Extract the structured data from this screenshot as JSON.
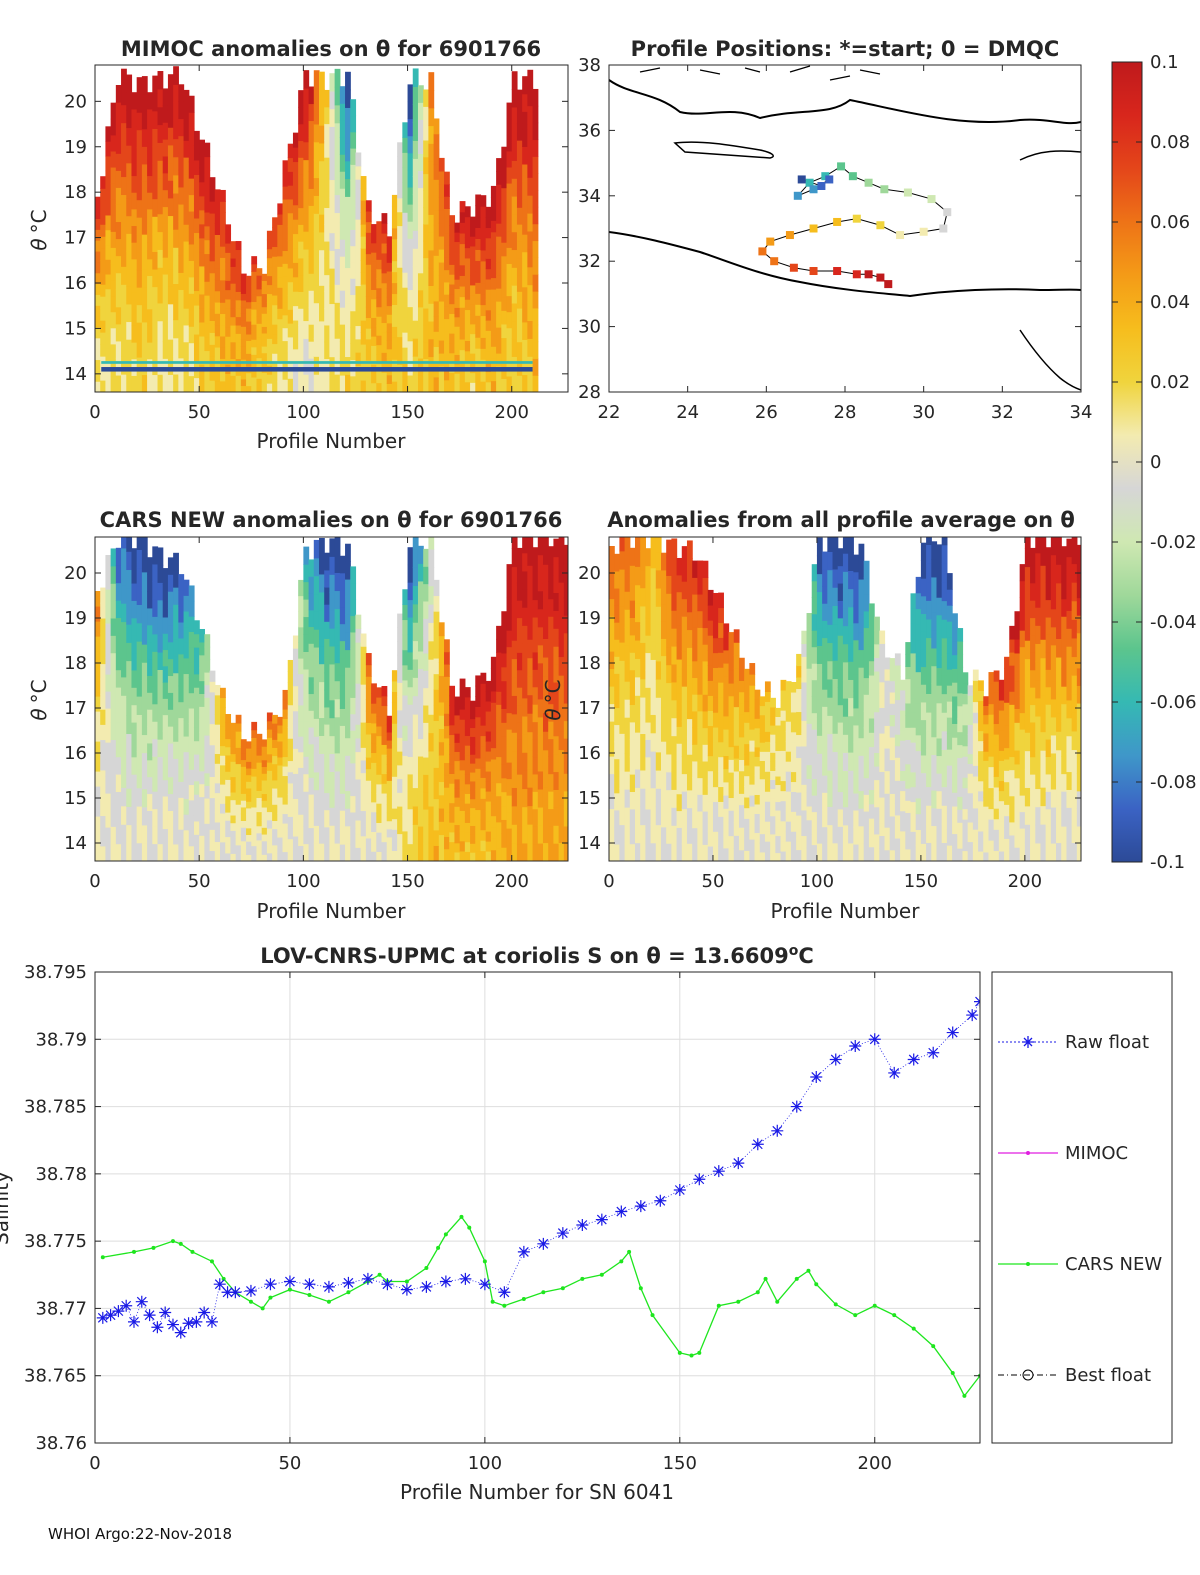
{
  "footer": "WHOI Argo:22-Nov-2018",
  "colorbar": {
    "ticks": [
      "0.1",
      "0.08",
      "0.06",
      "0.04",
      "0.02",
      "0",
      "-0.02",
      "-0.04",
      "-0.06",
      "-0.08",
      "-0.1"
    ],
    "range": [
      -0.1,
      0.1
    ],
    "colors": [
      "#2c4a97",
      "#3b63c4",
      "#3f97c9",
      "#35b9b3",
      "#5cc58d",
      "#9fd89a",
      "#cfe8b2",
      "#d6d6d6",
      "#f3ebb0",
      "#f0d43d",
      "#f6bd1d",
      "#f49b17",
      "#ee7317",
      "#e4461a",
      "#d8261c",
      "#bf1a1c"
    ]
  },
  "panel_a": {
    "title": "MIMOC anomalies on θ  for 6901766",
    "xlabel": "Profile Number",
    "ylabel_theta": "θ",
    "ylabel_unit": "°C",
    "xticks": [
      "0",
      "50",
      "100",
      "150",
      "200"
    ],
    "yticks": [
      "20",
      "19",
      "18",
      "17",
      "16",
      "15",
      "14"
    ]
  },
  "panel_b": {
    "title": "Profile Positions: *=start; 0 = DMQC",
    "xticks": [
      "22",
      "24",
      "26",
      "28",
      "30",
      "32",
      "34"
    ],
    "yticks": [
      "38",
      "36",
      "34",
      "32",
      "30",
      "28"
    ]
  },
  "panel_c": {
    "title": "CARS NEW anomalies on θ for 6901766",
    "xlabel": "Profile Number",
    "ylabel_theta": "θ",
    "ylabel_unit": "°C",
    "xticks": [
      "0",
      "50",
      "100",
      "150",
      "200"
    ],
    "yticks": [
      "20",
      "19",
      "18",
      "17",
      "16",
      "15",
      "14"
    ]
  },
  "panel_d": {
    "title": "Anomalies from all profile average on θ",
    "xlabel": "Profile Number",
    "ylabel_theta": "θ",
    "ylabel_unit": "°C",
    "xticks": [
      "0",
      "50",
      "100",
      "150",
      "200"
    ],
    "yticks": [
      "20",
      "19",
      "18",
      "17",
      "16",
      "15",
      "14"
    ]
  },
  "panel_e": {
    "title_prefix": "LOV-CNRS-UPMC at coriolis S on θ = 13.6609",
    "title_sup": "o",
    "title_suffix": "C",
    "ylabel": "Salinity",
    "xlabel": "Profile Number for SN 6041",
    "xticks": [
      "0",
      "50",
      "100",
      "150",
      "200"
    ],
    "yticks": [
      "38.795",
      "38.79",
      "38.785",
      "38.78",
      "38.775",
      "38.77",
      "38.765",
      "38.76"
    ],
    "legend": [
      "Raw float",
      "MIMOC",
      "CARS NEW",
      "Best float"
    ]
  },
  "chart_data": [
    {
      "type": "heatmap",
      "title": "MIMOC anomalies on θ  for 6901766",
      "xlabel": "Profile Number",
      "ylabel": "θ °C",
      "xlim": [
        0,
        227
      ],
      "ylim": [
        13.6,
        20.8
      ],
      "profiles": [
        0,
        10,
        20,
        30,
        40,
        50,
        60,
        70,
        80,
        90,
        100,
        110,
        120,
        130,
        140,
        150,
        160,
        170,
        180,
        190,
        200,
        210
      ],
      "top_theta": [
        17.9,
        20.6,
        20.4,
        20.5,
        20.6,
        19.2,
        17.8,
        16.3,
        16.4,
        18.5,
        20.6,
        20.5,
        20.6,
        17.6,
        17.2,
        20.5,
        20.4,
        17.5,
        17.7,
        18.0,
        20.5,
        20.5
      ],
      "upper_anomaly": [
        0.08,
        0.1,
        0.1,
        0.1,
        0.1,
        0.1,
        0.08,
        0.08,
        0.06,
        0.08,
        0.1,
        0.02,
        -0.1,
        0.08,
        0.08,
        -0.1,
        0.05,
        0.08,
        0.1,
        0.1,
        0.1,
        0.1
      ],
      "deep_anomaly": [
        0.01,
        0.01,
        0.02,
        0.01,
        0.01,
        0.02,
        0.03,
        0.03,
        0.02,
        0.01,
        0.0,
        0.01,
        0.02,
        0.02,
        0.03,
        0.02,
        0.03,
        0.03,
        0.02,
        0.03,
        0.02,
        0.03
      ],
      "valid_until_profile": 210
    },
    {
      "type": "scatter",
      "title": "Profile Positions: *=start; 0 = DMQC",
      "xlim": [
        22,
        34
      ],
      "ylim": [
        28,
        38
      ],
      "track": [
        [
          29.1,
          31.3
        ],
        [
          28.9,
          31.5
        ],
        [
          28.6,
          31.6
        ],
        [
          28.3,
          31.6
        ],
        [
          27.8,
          31.7
        ],
        [
          27.2,
          31.7
        ],
        [
          26.7,
          31.8
        ],
        [
          26.2,
          32.0
        ],
        [
          25.9,
          32.3
        ],
        [
          26.1,
          32.6
        ],
        [
          26.6,
          32.8
        ],
        [
          27.2,
          33.0
        ],
        [
          27.8,
          33.2
        ],
        [
          28.3,
          33.3
        ],
        [
          28.9,
          33.1
        ],
        [
          29.4,
          32.8
        ],
        [
          30.0,
          32.9
        ],
        [
          30.5,
          33.0
        ],
        [
          30.6,
          33.5
        ],
        [
          30.2,
          33.9
        ],
        [
          29.6,
          34.1
        ],
        [
          29.0,
          34.2
        ],
        [
          28.6,
          34.4
        ],
        [
          28.2,
          34.6
        ],
        [
          27.9,
          34.9
        ],
        [
          27.5,
          34.6
        ],
        [
          27.1,
          34.4
        ],
        [
          26.8,
          34.0
        ],
        [
          27.2,
          34.2
        ],
        [
          27.6,
          34.5
        ],
        [
          27.4,
          34.3
        ],
        [
          26.9,
          34.5
        ]
      ]
    },
    {
      "type": "heatmap",
      "title": "CARS NEW anomalies on θ for 6901766",
      "xlabel": "Profile Number",
      "ylabel": "θ °C",
      "xlim": [
        0,
        227
      ],
      "ylim": [
        13.6,
        20.8
      ],
      "profiles": [
        0,
        10,
        20,
        30,
        40,
        50,
        60,
        70,
        80,
        90,
        100,
        110,
        120,
        130,
        140,
        150,
        160,
        170,
        180,
        190,
        200,
        210
      ],
      "top_theta": [
        19.6,
        20.8,
        20.8,
        20.4,
        20.2,
        18.8,
        17.2,
        16.4,
        16.5,
        17.2,
        20.5,
        20.7,
        20.6,
        18.0,
        17.0,
        20.7,
        20.7,
        17.5,
        17.4,
        18.0,
        20.8,
        20.8
      ],
      "upper_anomaly": [
        0.05,
        -0.08,
        -0.1,
        -0.1,
        -0.09,
        -0.05,
        0.04,
        0.06,
        0.06,
        0.05,
        -0.06,
        -0.1,
        -0.1,
        0.06,
        0.08,
        -0.1,
        -0.02,
        0.09,
        0.1,
        0.1,
        0.1,
        0.1
      ],
      "deep_anomaly": [
        0.0,
        0.0,
        0.0,
        0.0,
        0.0,
        0.0,
        0.0,
        0.0,
        0.0,
        0.0,
        0.0,
        0.0,
        0.0,
        0.0,
        0.0,
        0.02,
        0.03,
        0.03,
        0.03,
        0.03,
        0.04,
        0.04
      ]
    },
    {
      "type": "heatmap",
      "title": "Anomalies from all profile average on θ",
      "xlabel": "Profile Number",
      "ylabel": "θ °C",
      "xlim": [
        0,
        227
      ],
      "ylim": [
        13.6,
        20.8
      ],
      "profiles": [
        0,
        10,
        20,
        30,
        40,
        50,
        60,
        70,
        80,
        90,
        100,
        110,
        120,
        130,
        140,
        150,
        160,
        170,
        180,
        190,
        200,
        210
      ],
      "top_theta": [
        20.6,
        20.8,
        20.8,
        20.6,
        20.5,
        19.6,
        18.5,
        17.5,
        17.2,
        18.0,
        20.7,
        20.8,
        20.6,
        18.5,
        17.8,
        20.8,
        20.8,
        17.8,
        17.5,
        18.0,
        20.8,
        20.8
      ],
      "upper_anomaly": [
        0.06,
        0.06,
        0.03,
        0.08,
        0.08,
        0.09,
        0.06,
        0.04,
        0.02,
        0.02,
        -0.09,
        -0.1,
        -0.1,
        0.0,
        -0.02,
        -0.1,
        -0.1,
        -0.04,
        0.06,
        0.08,
        0.1,
        0.1
      ],
      "deep_anomaly": [
        0.0,
        0.0,
        0.0,
        0.0,
        0.0,
        0.0,
        0.0,
        0.0,
        0.0,
        0.0,
        0.0,
        0.0,
        0.0,
        0.0,
        0.0,
        0.0,
        0.0,
        0.0,
        0.0,
        0.0,
        0.0,
        0.0
      ]
    },
    {
      "type": "line",
      "title": "LOV-CNRS-UPMC at coriolis S on θ = 13.6609 °C",
      "xlabel": "Profile Number for SN 6041",
      "ylabel": "Salinity",
      "xlim": [
        0,
        227
      ],
      "ylim": [
        38.76,
        38.795
      ],
      "series": [
        {
          "name": "Raw float",
          "x": [
            2,
            4,
            6,
            8,
            10,
            12,
            14,
            16,
            18,
            20,
            22,
            24,
            26,
            28,
            30,
            32,
            34,
            36,
            40,
            45,
            50,
            55,
            60,
            65,
            70,
            75,
            80,
            85,
            90,
            95,
            100,
            105,
            110,
            115,
            120,
            125,
            130,
            135,
            140,
            145,
            150,
            155,
            160,
            165,
            170,
            175,
            180,
            185,
            190,
            195,
            200,
            205,
            210,
            215,
            220,
            225,
            227
          ],
          "y": [
            38.7693,
            38.7695,
            38.7698,
            38.7702,
            38.769,
            38.7705,
            38.7695,
            38.7686,
            38.7697,
            38.7688,
            38.7682,
            38.7689,
            38.769,
            38.7697,
            38.769,
            38.7718,
            38.7712,
            38.7712,
            38.7713,
            38.7718,
            38.772,
            38.7718,
            38.7716,
            38.7719,
            38.7722,
            38.7718,
            38.7714,
            38.7716,
            38.772,
            38.7722,
            38.7718,
            38.7712,
            38.7742,
            38.7748,
            38.7756,
            38.7762,
            38.7766,
            38.7772,
            38.7776,
            38.778,
            38.7788,
            38.7796,
            38.7802,
            38.7808,
            38.7822,
            38.7832,
            38.785,
            38.7872,
            38.7885,
            38.7895,
            38.79,
            38.7875,
            38.7885,
            38.789,
            38.7905,
            38.7918,
            38.7928
          ]
        },
        {
          "name": "MIMOC",
          "x": [],
          "y": []
        },
        {
          "name": "CARS NEW",
          "x": [
            2,
            10,
            15,
            20,
            22,
            25,
            30,
            33,
            36,
            40,
            43,
            45,
            50,
            55,
            60,
            65,
            70,
            73,
            75,
            80,
            85,
            88,
            90,
            94,
            96,
            100,
            102,
            105,
            110,
            115,
            120,
            125,
            130,
            135,
            137,
            140,
            143,
            150,
            153,
            155,
            160,
            165,
            170,
            172,
            175,
            180,
            183,
            185,
            190,
            195,
            200,
            205,
            210,
            215,
            220,
            223,
            227
          ],
          "y": [
            38.7738,
            38.7742,
            38.7745,
            38.775,
            38.7748,
            38.7742,
            38.7735,
            38.7722,
            38.7712,
            38.7705,
            38.77,
            38.7708,
            38.7714,
            38.771,
            38.7705,
            38.7712,
            38.772,
            38.7725,
            38.772,
            38.772,
            38.773,
            38.7745,
            38.7755,
            38.7768,
            38.776,
            38.7735,
            38.7705,
            38.7702,
            38.7707,
            38.7712,
            38.7715,
            38.7722,
            38.7725,
            38.7735,
            38.7742,
            38.7715,
            38.7695,
            38.7667,
            38.7665,
            38.7667,
            38.7702,
            38.7705,
            38.7712,
            38.7722,
            38.7705,
            38.7722,
            38.7728,
            38.7718,
            38.7703,
            38.7695,
            38.7702,
            38.7695,
            38.7685,
            38.7672,
            38.7652,
            38.7635,
            38.765
          ]
        },
        {
          "name": "Best float",
          "x": [],
          "y": []
        }
      ]
    }
  ]
}
